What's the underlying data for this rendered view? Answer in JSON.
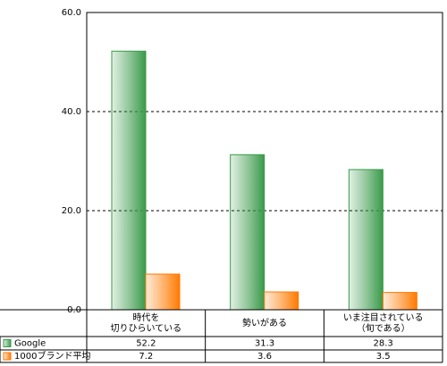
{
  "chart_data": {
    "type": "bar",
    "categories": [
      "時代を\n切りひらいている",
      "勢いがある",
      "いま注目されている\n（旬である）"
    ],
    "series": [
      {
        "name": "Google",
        "color": "#3a9a4a",
        "values": [
          52.2,
          31.3,
          28.3
        ]
      },
      {
        "name": "1000ブランド平均",
        "color": "#ff7a00",
        "values": [
          7.2,
          3.6,
          3.5
        ]
      }
    ],
    "ylim": [
      0,
      60
    ],
    "yticks": [
      {
        "value": 0,
        "label": "0.0"
      },
      {
        "value": 20,
        "label": "20.0"
      },
      {
        "value": 40,
        "label": "40.0"
      },
      {
        "value": 60,
        "label": "60.0"
      }
    ],
    "grid": true,
    "data_table": true
  }
}
